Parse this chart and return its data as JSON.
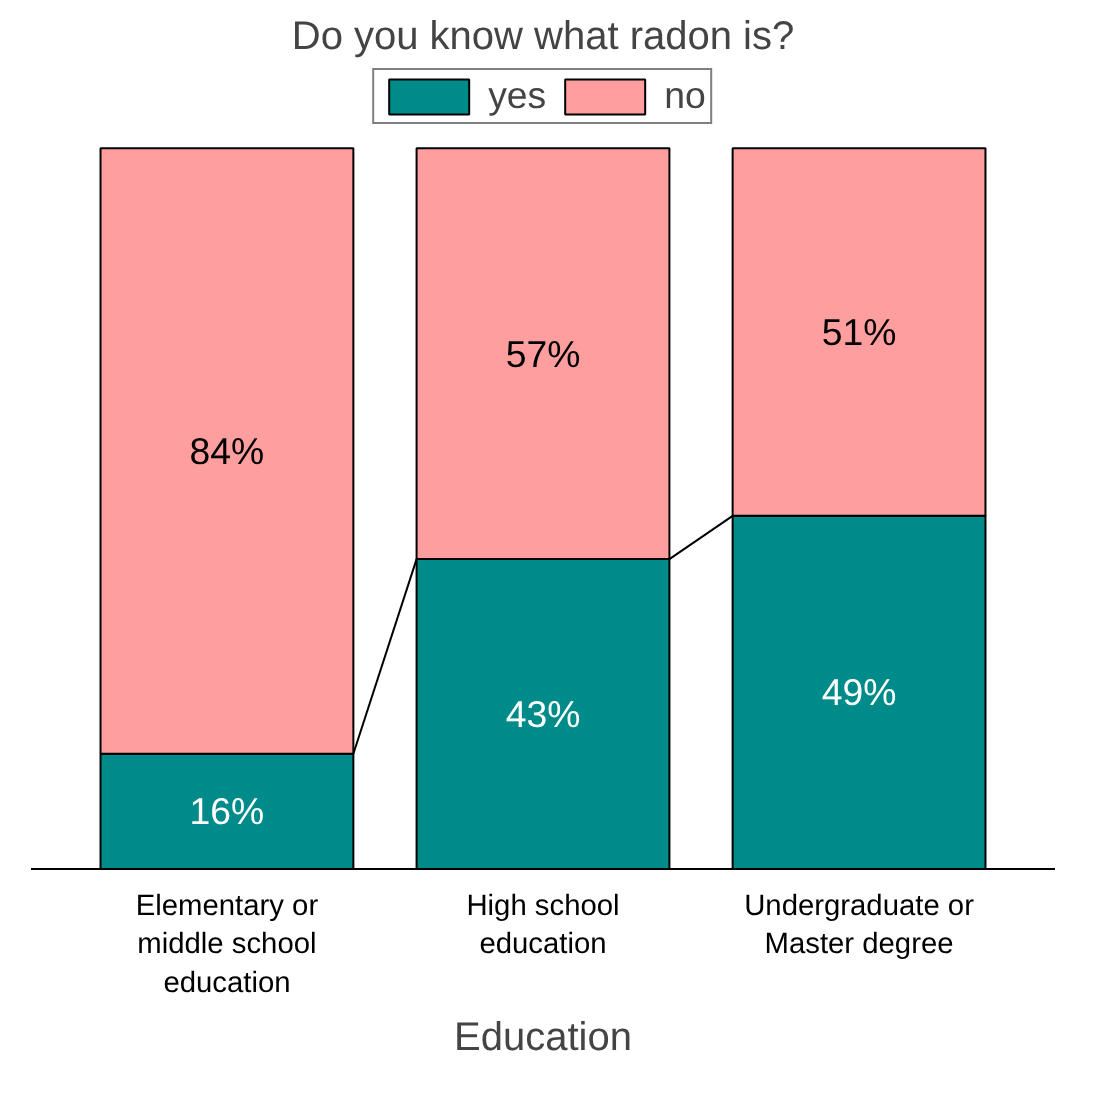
{
  "chart_data": {
    "type": "bar",
    "title": "Do you know what radon is?",
    "xlabel": "Education",
    "categories": [
      "Elementary or\nmiddle school\neducation",
      "High school\neducation",
      "Undergraduate or\nMaster degree"
    ],
    "stacked": true,
    "legend": "top",
    "series": [
      {
        "name": "yes",
        "color": "#008b8b",
        "values": [
          16,
          43,
          49
        ],
        "value_labels": [
          "16%",
          "43%",
          "49%"
        ]
      },
      {
        "name": "no",
        "color": "#ff9e9e",
        "values": [
          84,
          57,
          51
        ],
        "value_labels": [
          "84%",
          "57%",
          "51%"
        ]
      }
    ]
  }
}
